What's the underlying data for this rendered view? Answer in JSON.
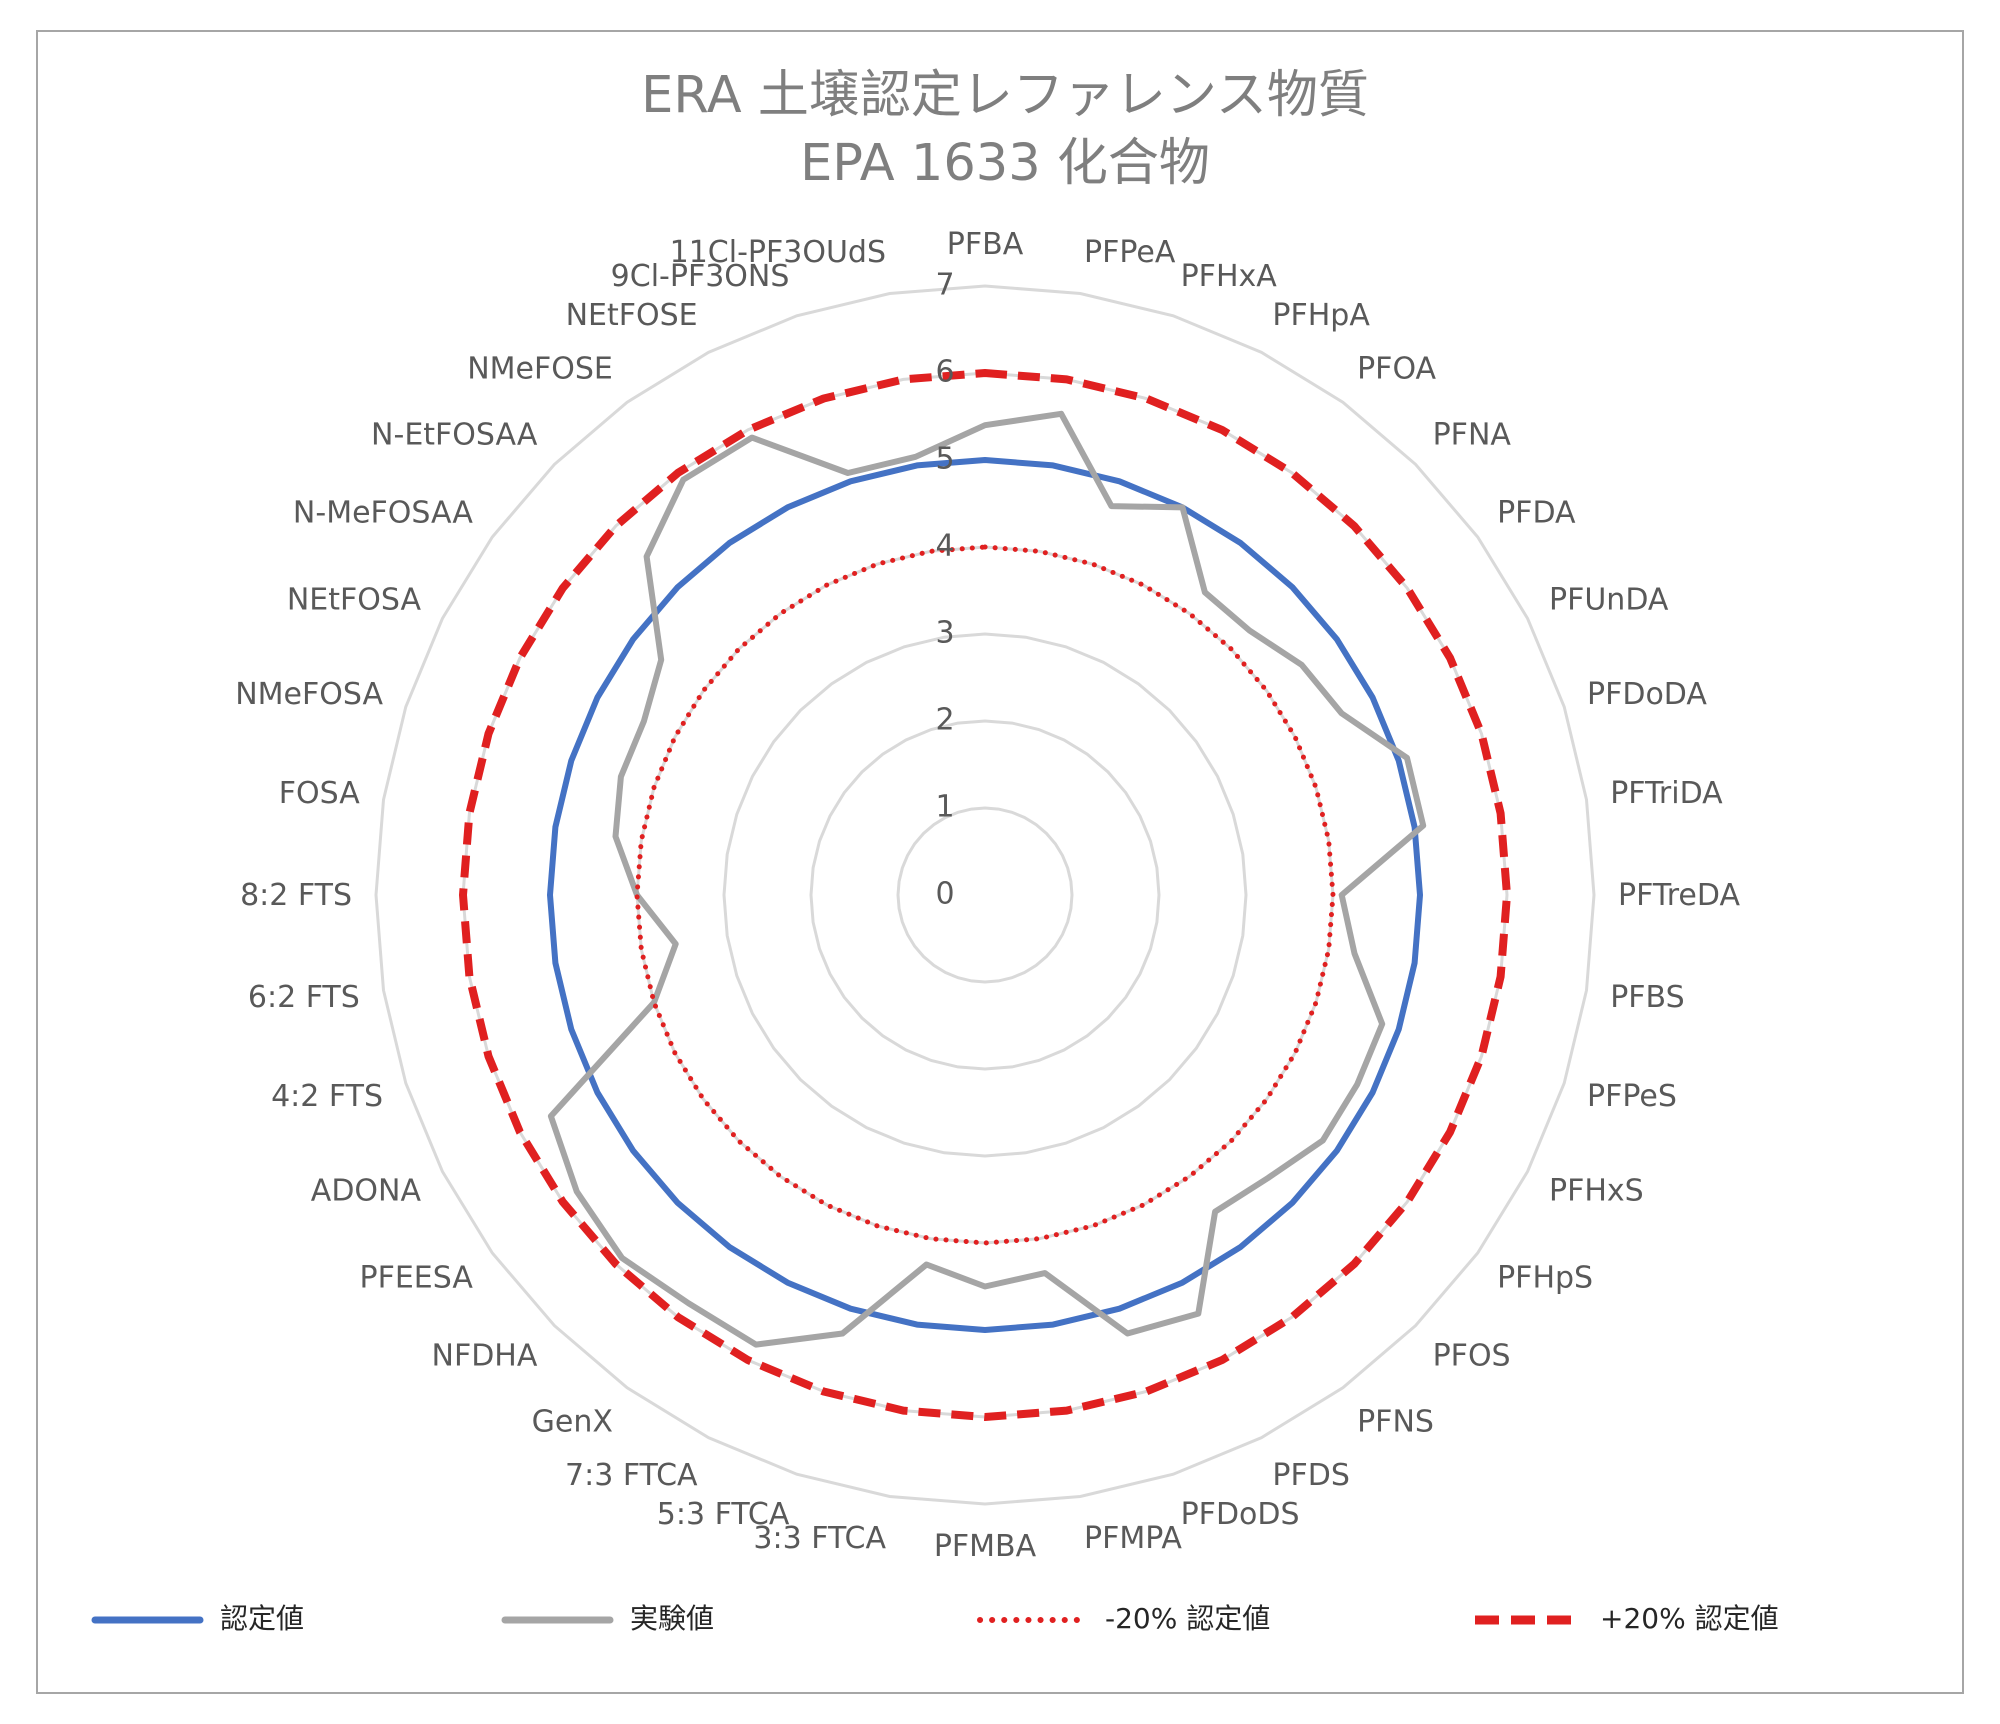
{
  "chart_data": {
    "type": "radar",
    "title": [
      "ERA 土壌認定レファレンス物質",
      "EPA 1633 化合物"
    ],
    "categories": [
      "PFBA",
      "PFPeA",
      "PFHxA",
      "PFHpA",
      "PFOA",
      "PFNA",
      "PFDA",
      "PFUnDA",
      "PFDoDA",
      "PFTriDA",
      "PFTreDA",
      "PFBS",
      "PFPeS",
      "PFHxS",
      "PFHpS",
      "PFOS",
      "PFNS",
      "PFDS",
      "PFDoDS",
      "PFMPA",
      "PFMBA",
      "3:3 FTCA",
      "5:3 FTCA",
      "7:3 FTCA",
      "GenX",
      "NFDHA",
      "PFEESA",
      "ADONA",
      "4:2 FTS",
      "6:2 FTS",
      "8:2 FTS",
      "FOSA",
      "NMeFOSA",
      "NEtFOSA",
      "N-MeFOSAA",
      "N-EtFOSAA",
      "NMeFOSE",
      "NEtFOSE",
      "9Cl-PF3ONS",
      "11Cl-PF3OUdS"
    ],
    "rlim": [
      0,
      7
    ],
    "ticks": [
      "0",
      "1",
      "2",
      "3",
      "4",
      "5",
      "6",
      "7"
    ],
    "grid": true,
    "legend_position": "bottom",
    "series": [
      {
        "name": "認定値",
        "color": "#4472c4",
        "style": "solid",
        "values": [
          5,
          5,
          5,
          5,
          5,
          5,
          5,
          5,
          5,
          5,
          5,
          5,
          5,
          5,
          5,
          5,
          5,
          5,
          5,
          5,
          5,
          5,
          5,
          5,
          5,
          5,
          5,
          5,
          5,
          5,
          5,
          5,
          5,
          5,
          5,
          5,
          5,
          5,
          5,
          5
        ]
      },
      {
        "name": "実験値",
        "color": "#a5a5a5",
        "style": "solid",
        "values": [
          5.4,
          5.6,
          4.7,
          5,
          4.3,
          4.3,
          4.5,
          4.6,
          5.1,
          5.1,
          4.1,
          4.3,
          4.8,
          4.8,
          4.8,
          4.6,
          4.5,
          5.4,
          5.3,
          4.4,
          4.5,
          4.3,
          5.3,
          5.8,
          5.8,
          5.9,
          5.8,
          5.6,
          4.0,
          3.6,
          4.0,
          4.3,
          4.4,
          4.4,
          4.6,
          5.5,
          5.9,
          5.9,
          5.1,
          5.1
        ]
      },
      {
        "name": "-20% 認定値",
        "color": "#e02020",
        "style": "dotted",
        "values": [
          4,
          4,
          4,
          4,
          4,
          4,
          4,
          4,
          4,
          4,
          4,
          4,
          4,
          4,
          4,
          4,
          4,
          4,
          4,
          4,
          4,
          4,
          4,
          4,
          4,
          4,
          4,
          4,
          4,
          4,
          4,
          4,
          4,
          4,
          4,
          4,
          4,
          4,
          4,
          4
        ]
      },
      {
        "name": "+20% 認定値",
        "color": "#e02020",
        "style": "dashed",
        "values": [
          6,
          6,
          6,
          6,
          6,
          6,
          6,
          6,
          6,
          6,
          6,
          6,
          6,
          6,
          6,
          6,
          6,
          6,
          6,
          6,
          6,
          6,
          6,
          6,
          6,
          6,
          6,
          6,
          6,
          6,
          6,
          6,
          6,
          6,
          6,
          6,
          6,
          6,
          6,
          6
        ]
      }
    ]
  }
}
